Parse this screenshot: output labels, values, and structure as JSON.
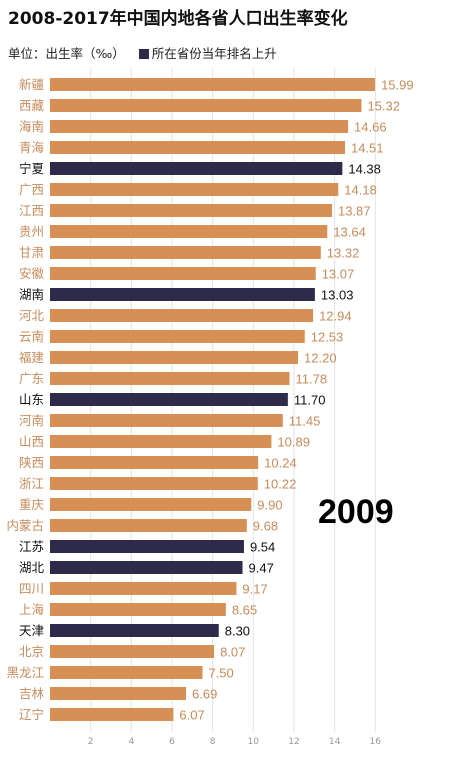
{
  "header": {
    "title": "2008-2017年中国内地各省人口出生率变化",
    "unit_label": "单位：出生率（‰）",
    "legend_label": "所在省份当年排名上升"
  },
  "colors": {
    "default_bar": "#d68f55",
    "highlight_bar": "#2e2b4a",
    "default_value_text": "#c68c5c",
    "highlight_value_text": "#111111",
    "default_category_text": "#c68c5c",
    "highlight_category_text": "#111111",
    "grid": "#e3e3e3"
  },
  "chart_data": {
    "type": "bar",
    "orientation": "horizontal",
    "year": "2009",
    "categories": [
      "新疆",
      "西藏",
      "海南",
      "青海",
      "宁夏",
      "广西",
      "江西",
      "贵州",
      "甘肃",
      "安徽",
      "湖南",
      "河北",
      "云南",
      "福建",
      "广东",
      "山东",
      "河南",
      "山西",
      "陕西",
      "浙江",
      "重庆",
      "内蒙古",
      "江苏",
      "湖北",
      "四川",
      "上海",
      "天津",
      "北京",
      "黑龙江",
      "吉林",
      "辽宁"
    ],
    "values": [
      15.99,
      15.32,
      14.66,
      14.51,
      14.38,
      14.18,
      13.87,
      13.64,
      13.32,
      13.07,
      13.03,
      12.94,
      12.53,
      12.2,
      11.78,
      11.7,
      11.45,
      10.89,
      10.24,
      10.22,
      9.9,
      9.68,
      9.54,
      9.47,
      9.17,
      8.65,
      8.3,
      8.07,
      7.5,
      6.69,
      6.07
    ],
    "value_labels": [
      "15.99",
      "15.32",
      "14.66",
      "14.51",
      "14.38",
      "14.18",
      "13.87",
      "13.64",
      "13.32",
      "13.07",
      "13.03",
      "12.94",
      "12.53",
      "12.20",
      "11.78",
      "11.70",
      "11.45",
      "10.89",
      "10.24",
      "10.22",
      "9.90",
      "9.68",
      "9.54",
      "9.47",
      "9.17",
      "8.65",
      "8.30",
      "8.07",
      "7.50",
      "6.69",
      "6.07"
    ],
    "rank_up": [
      false,
      false,
      false,
      false,
      true,
      false,
      false,
      false,
      false,
      false,
      true,
      false,
      false,
      false,
      false,
      true,
      false,
      false,
      false,
      false,
      false,
      false,
      true,
      true,
      false,
      false,
      true,
      false,
      false,
      false,
      false
    ],
    "xlim": [
      0,
      16
    ],
    "x_ticks": [
      2,
      4,
      6,
      8,
      10,
      12,
      14,
      16
    ],
    "x_tick_labels": [
      "2",
      "4",
      "6",
      "8",
      "10",
      "12",
      "14",
      "16"
    ],
    "grid": true
  }
}
